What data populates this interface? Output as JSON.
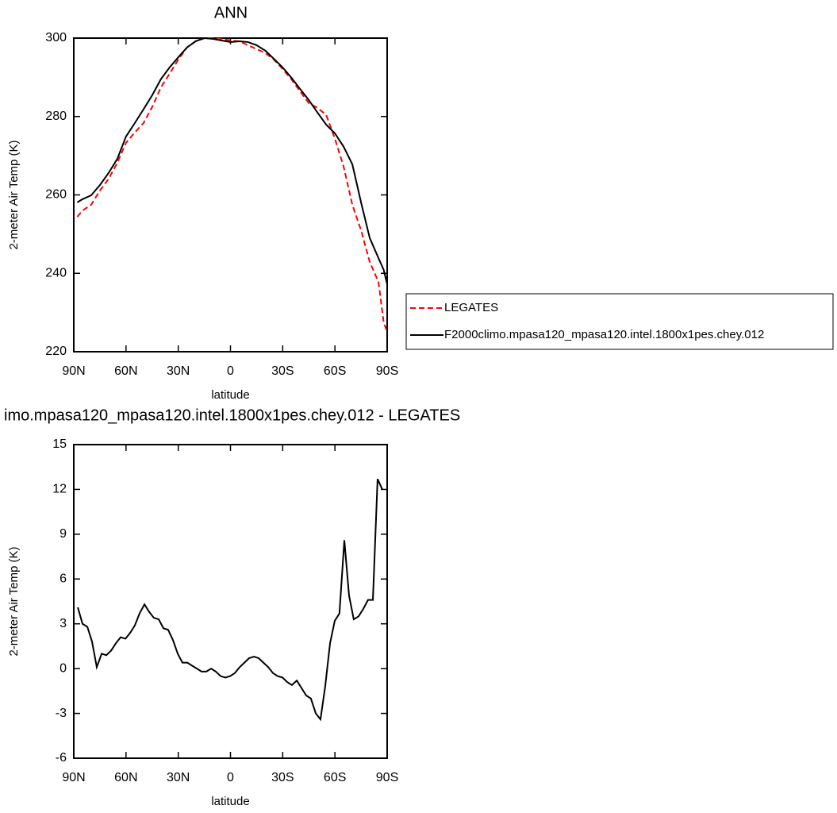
{
  "chart_data": [
    {
      "type": "line",
      "title": "ANN",
      "xlabel": "latitude",
      "ylabel": "2-meter Air Temp (K)",
      "x": [
        88,
        85,
        80,
        75,
        70,
        65,
        60,
        55,
        50,
        45,
        40,
        35,
        30,
        25,
        20,
        15,
        10,
        5,
        0,
        -5,
        -10,
        -15,
        -20,
        -25,
        -30,
        -35,
        -40,
        -45,
        -50,
        -55,
        -60,
        -65,
        -70,
        -75,
        -80,
        -85,
        -88,
        -90
      ],
      "series": [
        {
          "name": "LEGATES",
          "color": "#ff0000",
          "style": "dashed",
          "values": [
            254.4,
            256.0,
            257.5,
            261.1,
            264.1,
            268.2,
            273.3,
            275.9,
            278.3,
            282.4,
            287.4,
            290.9,
            294.5,
            297.6,
            299.2,
            300,
            300,
            299.8,
            299.4,
            299.2,
            298.2,
            297.2,
            296.2,
            294.5,
            292.1,
            289.5,
            286.4,
            283.4,
            282.2,
            280.4,
            274.3,
            267.2,
            257.5,
            251.0,
            242.9,
            237.8,
            227.5,
            225.1
          ]
        },
        {
          "name": "F2000climo.mpasa120_mpasa120.intel.1800x1pes.chey.012",
          "color": "#000000",
          "style": "solid",
          "values": [
            258.1,
            258.9,
            259.9,
            262.5,
            265.6,
            269.2,
            274.9,
            278.3,
            281.8,
            285.4,
            289.5,
            292.5,
            295.1,
            297.6,
            299.2,
            300,
            299.8,
            299.4,
            299,
            299.2,
            299,
            298.2,
            296.8,
            294.7,
            292.5,
            289.9,
            287.0,
            284.2,
            281.0,
            277.9,
            275.7,
            272.3,
            267.8,
            258.1,
            249.0,
            243.9,
            240.9,
            237.2
          ]
        }
      ],
      "xlim": [
        90,
        -90
      ],
      "xticks": [
        {
          "value": 90,
          "label": "90N"
        },
        {
          "value": 60,
          "label": "60N"
        },
        {
          "value": 30,
          "label": "30N"
        },
        0,
        {
          "value": -30,
          "label": "30S"
        },
        {
          "value": -60,
          "label": "60S"
        },
        {
          "value": -90,
          "label": "90S"
        }
      ],
      "ylim": [
        220,
        300
      ],
      "yticks": [
        220,
        240,
        260,
        280,
        300
      ],
      "legend": "right"
    },
    {
      "type": "line",
      "title": "imo.mpasa120_mpasa120.intel.1800x1pes.chey.012 - LEGATES",
      "xlabel": "latitude",
      "ylabel": "2-meter Air Temp (K)",
      "x": [
        87.7,
        85.0,
        82.2,
        79.5,
        76.8,
        74.0,
        71.3,
        68.6,
        65.8,
        63.1,
        60.3,
        57.6,
        54.9,
        52.2,
        49.4,
        46.7,
        44.0,
        41.2,
        38.5,
        35.8,
        33.0,
        30.3,
        27.6,
        24.8,
        22.1,
        19.3,
        16.6,
        13.9,
        11.1,
        8.4,
        5.7,
        2.9,
        0.2,
        -2.5,
        -5.3,
        -8.0,
        -10.7,
        -13.5,
        -16.2,
        -18.9,
        -21.7,
        -24.4,
        -27.1,
        -29.9,
        -32.6,
        -35.3,
        -38.1,
        -40.8,
        -43.5,
        -46.2,
        -49.0,
        -51.7,
        -54.4,
        -57.2,
        -59.9,
        -62.6,
        -65.4,
        -68.1,
        -70.8,
        -73.6,
        -76.3,
        -79.0,
        -81.8,
        -84.5,
        -87.2
      ],
      "values": [
        4.1,
        3.0,
        2.8,
        1.8,
        0.1,
        1.0,
        0.9,
        1.2,
        1.7,
        2.1,
        2.0,
        2.4,
        2.9,
        3.7,
        4.3,
        3.8,
        3.4,
        3.3,
        2.7,
        2.6,
        1.9,
        1.0,
        0.4,
        0.4,
        0.2,
        0.0,
        -0.2,
        -0.2,
        0.0,
        -0.2,
        -0.5,
        -0.6,
        -0.5,
        -0.3,
        0.1,
        0.4,
        0.7,
        0.8,
        0.7,
        0.4,
        0.1,
        -0.3,
        -0.5,
        -0.6,
        -0.9,
        -1.1,
        -0.8,
        -1.3,
        -1.8,
        -2.0,
        -3.0,
        -3.4,
        -1.2,
        1.7,
        3.2,
        3.7,
        8.6,
        4.9,
        3.3,
        3.5,
        4.0,
        4.6,
        4.6,
        12.7,
        12.0
      ],
      "color": "#000000",
      "xlim": [
        90,
        -90
      ],
      "xticks": [
        {
          "value": 90,
          "label": "90N"
        },
        {
          "value": 60,
          "label": "60N"
        },
        {
          "value": 30,
          "label": "30N"
        },
        0,
        {
          "value": -30,
          "label": "30S"
        },
        {
          "value": -60,
          "label": "60S"
        },
        {
          "value": -90,
          "label": "90S"
        }
      ],
      "ylim": [
        -6,
        15
      ],
      "yticks": [
        -6,
        -3,
        0,
        3,
        6,
        9,
        12,
        15
      ]
    }
  ]
}
